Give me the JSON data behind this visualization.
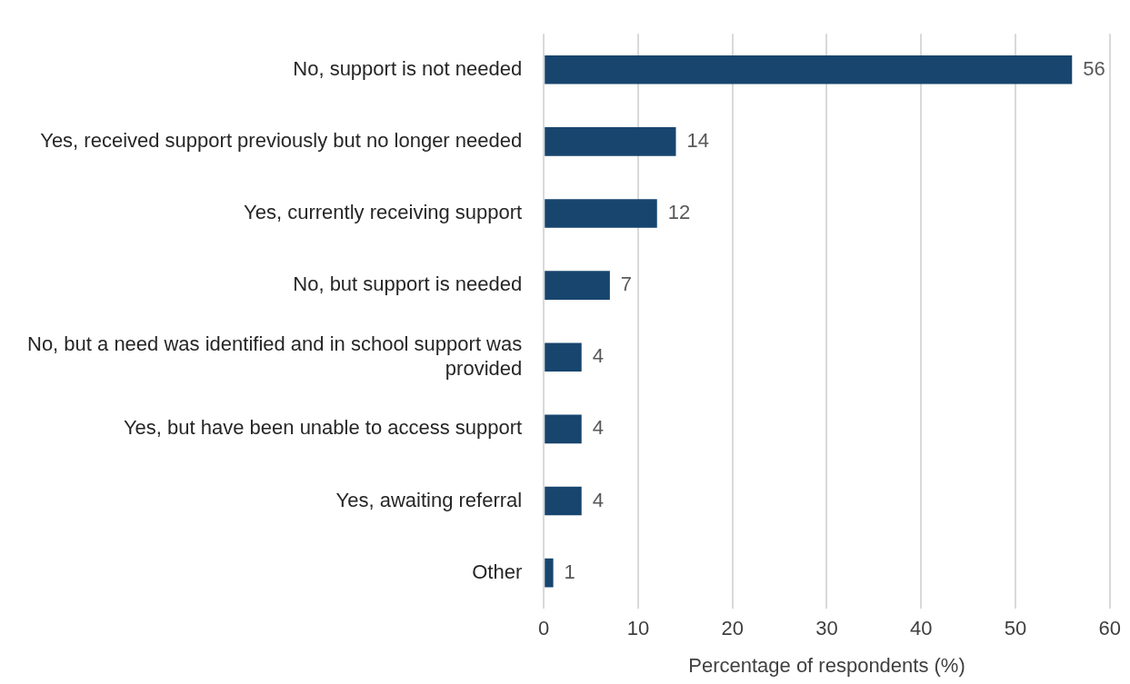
{
  "chart_data": {
    "type": "bar",
    "orientation": "horizontal",
    "xlabel": "Percentage of respondents (%)",
    "categories": [
      "No, support is not needed",
      "Yes, received support previously but no longer needed",
      "Yes, currently receiving support",
      "No, but support is needed",
      "No, but a need was identified and in school support was provided",
      "Yes, but have been unable to access support",
      "Yes, awaiting referral",
      "Other"
    ],
    "values": [
      56,
      14,
      12,
      7,
      4,
      4,
      4,
      1
    ],
    "color": "#17456e",
    "xlim": [
      0,
      60
    ],
    "xticks": [
      0,
      10,
      20,
      30,
      40,
      50,
      60
    ],
    "grid": "x",
    "legend": false,
    "data_labels": true
  }
}
